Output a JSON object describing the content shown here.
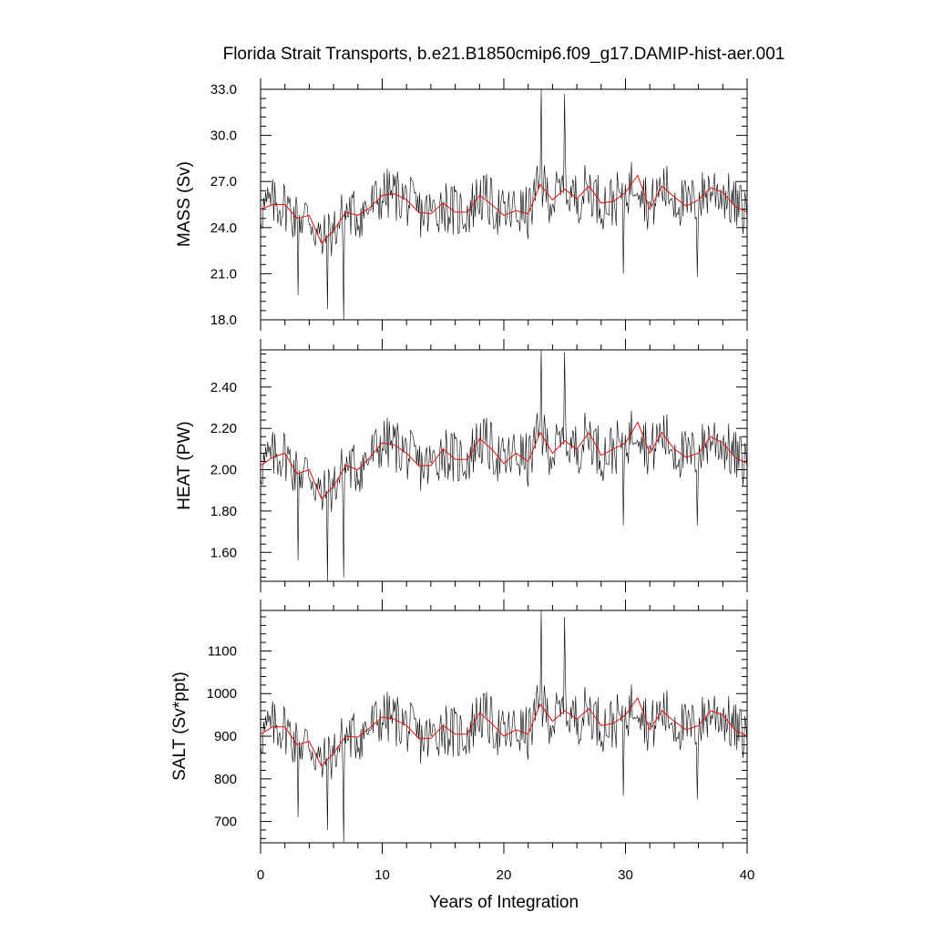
{
  "title": "Florida Strait Transports, b.e21.B1850cmip6.f09_g17.DAMIP-hist-aer.001",
  "colors": {
    "raw": "#000000",
    "smooth": "#e01010"
  },
  "chart_data": [
    {
      "type": "line",
      "ylabel": "MASS (Sv)",
      "xlabel": "",
      "xlim": [
        0,
        40
      ],
      "ylim": [
        18.0,
        33.0
      ],
      "yticks": [
        "18.0",
        "21.0",
        "24.0",
        "27.0",
        "30.0",
        "33.0"
      ],
      "yticks_values": [
        18,
        21,
        24,
        27,
        30,
        33
      ],
      "x_major_ticks": [
        0,
        10,
        20,
        30,
        40
      ],
      "x_major_labels": [],
      "series": [
        {
          "role": "monthly",
          "x_start": 0.0,
          "x_step": 0.0833,
          "base": 25.4,
          "amp": 1.6,
          "smooth_x": [
            0,
            1,
            2,
            3,
            4,
            5,
            6,
            7,
            8,
            9,
            10,
            11,
            12,
            13,
            14,
            15,
            16,
            17,
            18,
            19,
            20,
            21,
            22,
            23,
            24,
            25,
            26,
            27,
            28,
            29,
            30,
            31,
            32,
            33,
            34,
            35,
            36,
            37,
            38,
            39,
            40
          ],
          "smooth_y": [
            25.2,
            25.5,
            25.5,
            24.6,
            24.8,
            23.0,
            23.8,
            25.0,
            24.8,
            25.3,
            26.1,
            26.2,
            25.8,
            25.0,
            24.9,
            25.6,
            25.0,
            25.0,
            26.1,
            25.5,
            24.8,
            25.1,
            24.9,
            26.8,
            25.8,
            26.5,
            25.9,
            26.7,
            25.6,
            25.7,
            26.3,
            27.4,
            25.2,
            26.7,
            26.0,
            25.4,
            25.8,
            26.6,
            26.3,
            25.4,
            25.0
          ],
          "spikes": [
            [
              3.1,
              19.6
            ],
            [
              5.5,
              18.7
            ],
            [
              6.8,
              18.0
            ],
            [
              23.1,
              33.0
            ],
            [
              25.0,
              32.7
            ],
            [
              29.8,
              21.0
            ],
            [
              35.9,
              20.8
            ]
          ]
        },
        {
          "role": "annual-smooth"
        }
      ]
    },
    {
      "type": "line",
      "ylabel": "HEAT (PW)",
      "xlabel": "",
      "xlim": [
        0,
        40
      ],
      "ylim": [
        1.46,
        2.58
      ],
      "yticks": [
        "1.60",
        "1.80",
        "2.00",
        "2.20",
        "2.40"
      ],
      "yticks_values": [
        1.6,
        1.8,
        2.0,
        2.2,
        2.4
      ],
      "x_major_ticks": [
        0,
        10,
        20,
        30,
        40
      ],
      "x_major_labels": [],
      "series": [
        {
          "role": "monthly",
          "x_start": 0.0,
          "x_step": 0.0833,
          "base": 2.06,
          "amp": 0.12,
          "smooth_x": [
            0,
            1,
            2,
            3,
            4,
            5,
            6,
            7,
            8,
            9,
            10,
            11,
            12,
            13,
            14,
            15,
            16,
            17,
            18,
            19,
            20,
            21,
            22,
            23,
            24,
            25,
            26,
            27,
            28,
            29,
            30,
            31,
            32,
            33,
            34,
            35,
            36,
            37,
            38,
            39,
            40
          ],
          "smooth_y": [
            2.02,
            2.06,
            2.08,
            1.98,
            2.0,
            1.86,
            1.92,
            2.02,
            2.0,
            2.06,
            2.13,
            2.12,
            2.08,
            2.02,
            2.02,
            2.1,
            2.05,
            2.05,
            2.15,
            2.1,
            2.03,
            2.08,
            2.04,
            2.18,
            2.08,
            2.14,
            2.1,
            2.18,
            2.07,
            2.1,
            2.13,
            2.23,
            2.08,
            2.18,
            2.1,
            2.06,
            2.08,
            2.16,
            2.13,
            2.06,
            2.03
          ],
          "spikes": [
            [
              3.1,
              1.56
            ],
            [
              5.5,
              1.46
            ],
            [
              6.8,
              1.48
            ],
            [
              23.1,
              2.58
            ],
            [
              25.0,
              2.57
            ],
            [
              29.8,
              1.73
            ],
            [
              35.9,
              1.73
            ]
          ]
        },
        {
          "role": "annual-smooth"
        }
      ]
    },
    {
      "type": "line",
      "ylabel": "SALT (Sv*ppt)",
      "xlabel": "Years of Integration",
      "xlim": [
        0,
        40
      ],
      "ylim": [
        650,
        1195
      ],
      "yticks": [
        "700",
        "800",
        "900",
        "1000",
        "1100"
      ],
      "yticks_values": [
        700,
        800,
        900,
        1000,
        1100
      ],
      "x_major_ticks": [
        0,
        10,
        20,
        30,
        40
      ],
      "x_major_labels": [
        "0",
        "10",
        "20",
        "30",
        "40"
      ],
      "series": [
        {
          "role": "monthly",
          "x_start": 0.0,
          "x_step": 0.0833,
          "base": 915,
          "amp": 58,
          "smooth_x": [
            0,
            1,
            2,
            3,
            4,
            5,
            6,
            7,
            8,
            9,
            10,
            11,
            12,
            13,
            14,
            15,
            16,
            17,
            18,
            19,
            20,
            21,
            22,
            23,
            24,
            25,
            26,
            27,
            28,
            29,
            30,
            31,
            32,
            33,
            34,
            35,
            36,
            37,
            38,
            39,
            40
          ],
          "smooth_y": [
            905,
            922,
            922,
            880,
            888,
            830,
            860,
            900,
            898,
            920,
            945,
            940,
            925,
            895,
            895,
            925,
            905,
            905,
            955,
            930,
            900,
            915,
            905,
            975,
            935,
            960,
            940,
            965,
            925,
            930,
            950,
            990,
            915,
            960,
            935,
            915,
            925,
            960,
            950,
            915,
            900
          ],
          "spikes": [
            [
              3.1,
              710
            ],
            [
              5.5,
              680
            ],
            [
              6.8,
              652
            ],
            [
              23.1,
              1195
            ],
            [
              25.0,
              1180
            ],
            [
              29.8,
              760
            ],
            [
              35.9,
              752
            ]
          ]
        },
        {
          "role": "annual-smooth"
        }
      ]
    }
  ]
}
